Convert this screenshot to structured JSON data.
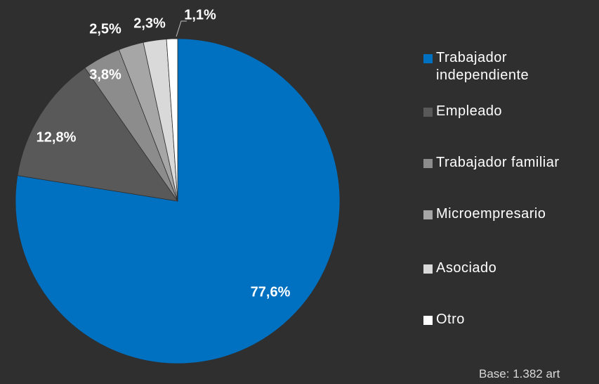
{
  "chart_data": {
    "type": "pie",
    "categories": [
      "Trabajador independiente",
      "Empleado",
      "Trabajador familiar",
      "Microempresario",
      "Asociado",
      "Otro"
    ],
    "values": [
      77.6,
      12.8,
      3.8,
      2.5,
      2.3,
      1.1
    ],
    "value_labels": [
      "77,6%",
      "12,8%",
      "3,8%",
      "2,5%",
      "2,3%",
      "1,1%"
    ],
    "colors": [
      "#0070c0",
      "#595959",
      "#8c8c8c",
      "#a6a6a6",
      "#d9d9d9",
      "#ffffff"
    ],
    "legend": "right",
    "note": "Base: 1.382 art"
  }
}
